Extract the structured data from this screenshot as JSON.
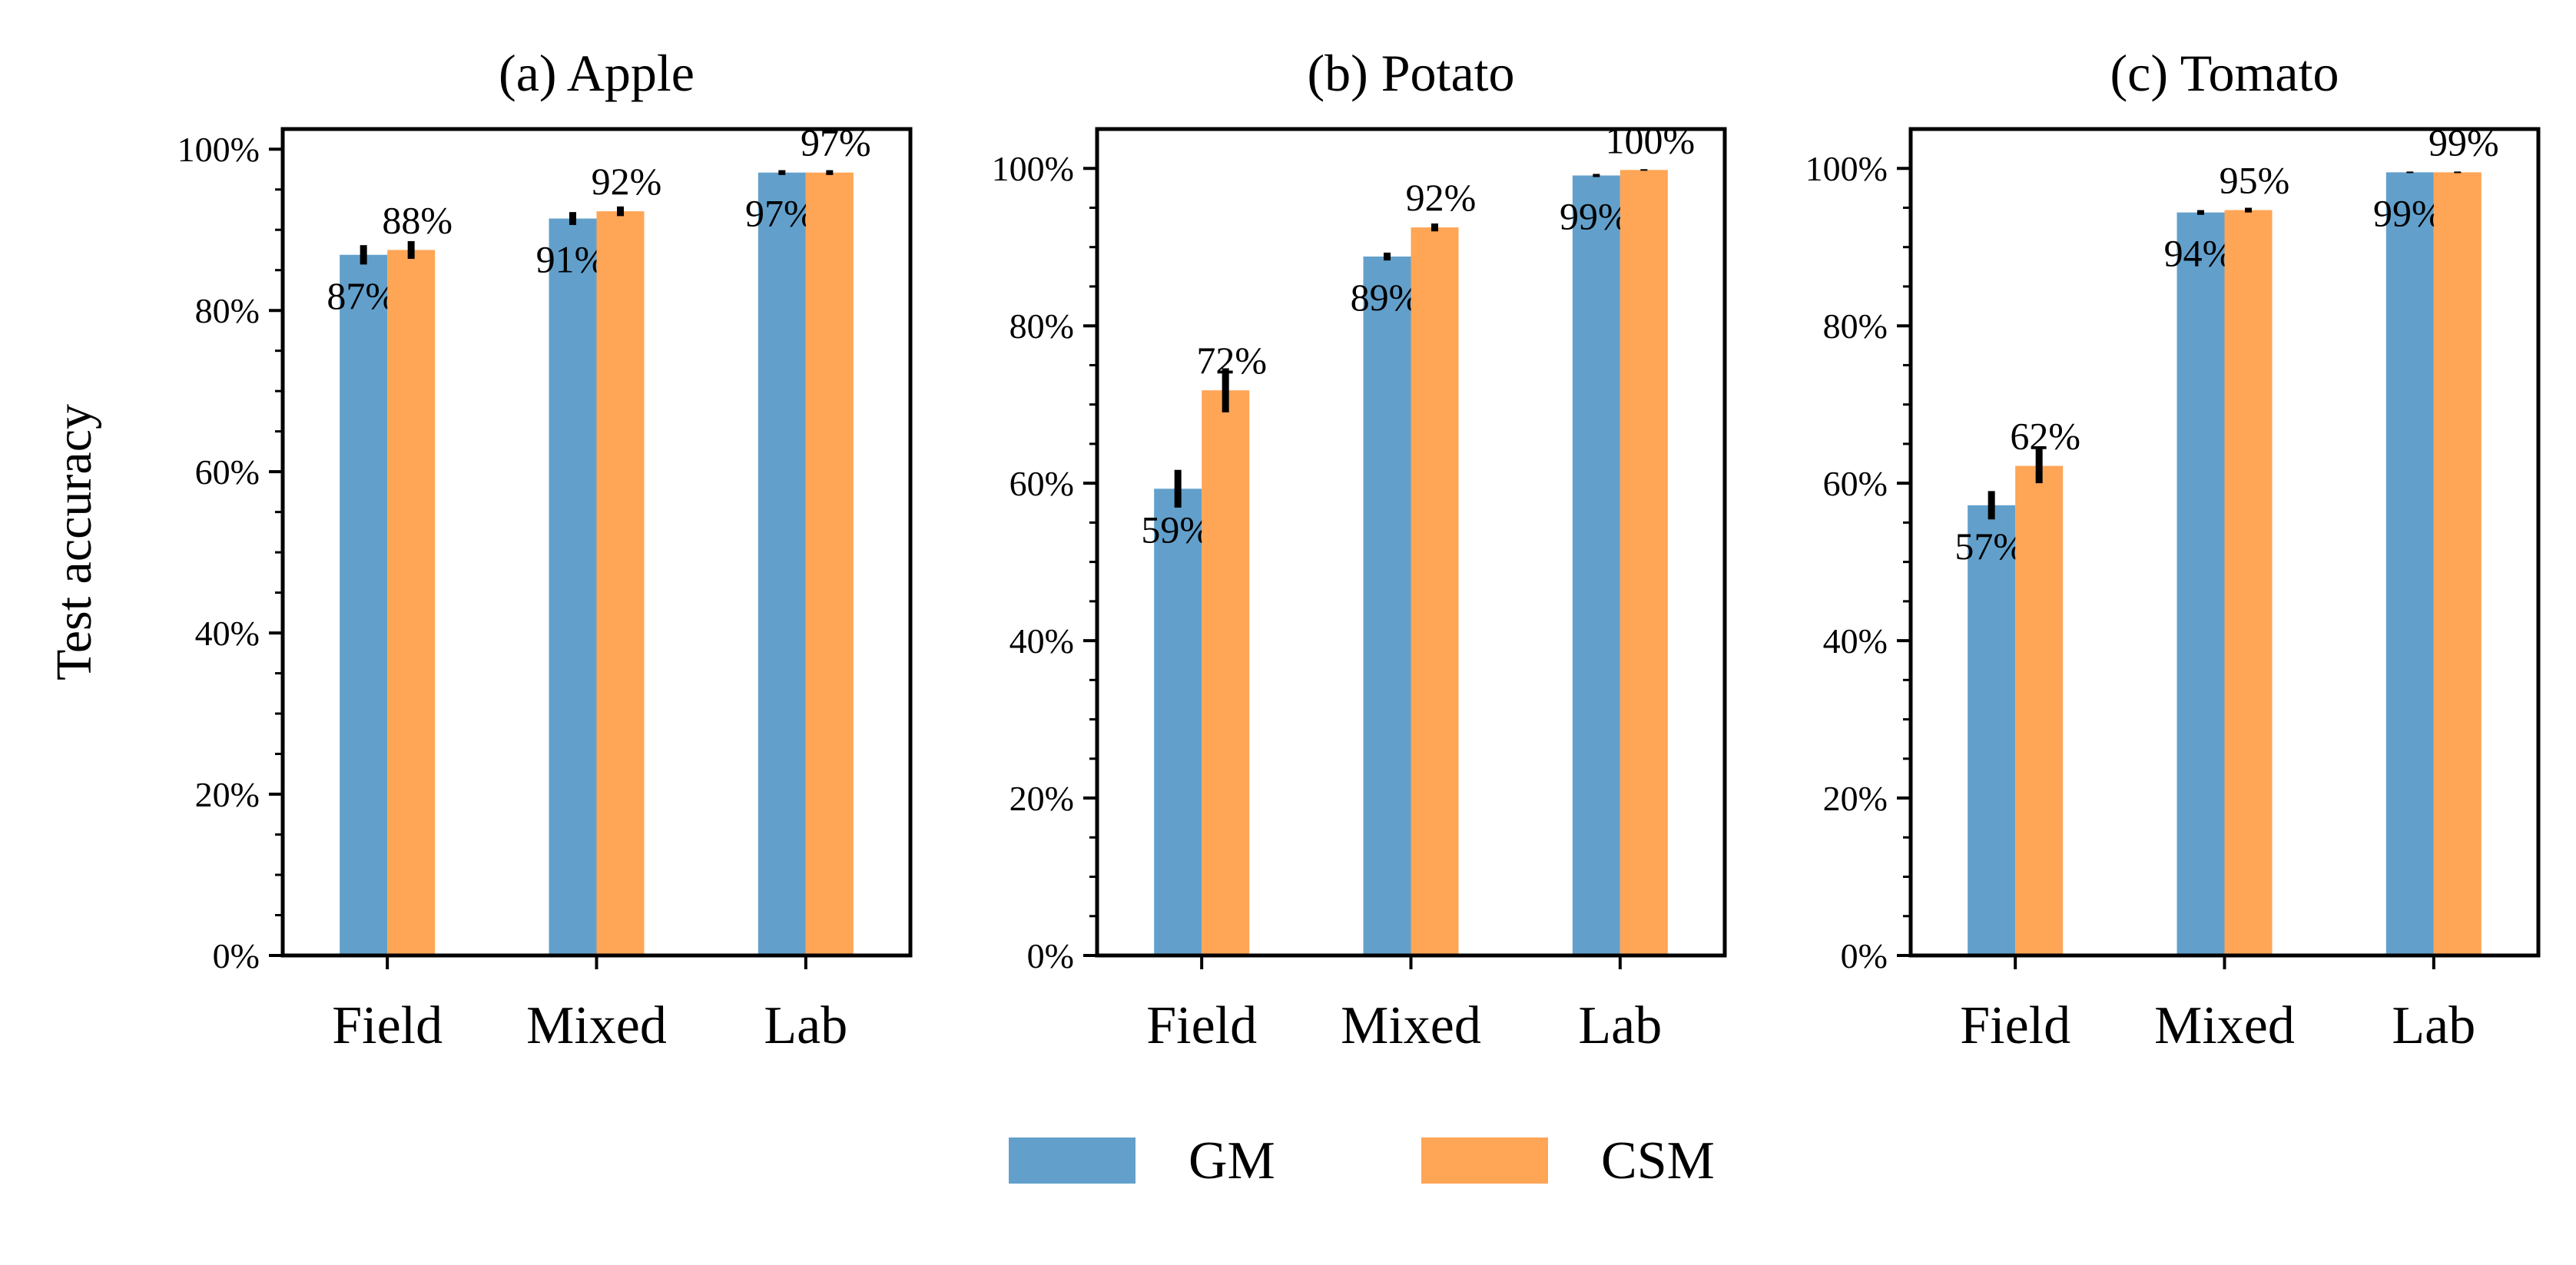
{
  "chart_data": [
    {
      "type": "bar",
      "title": "(a) Apple",
      "ylabel": "Test accuracy",
      "categories": [
        "Field",
        "Mixed",
        "Lab"
      ],
      "ylim": [
        0,
        102.5
      ],
      "y_ticks": [
        "0%",
        "20%",
        "40%",
        "60%",
        "80%",
        "100%"
      ],
      "series": [
        {
          "name": "GM",
          "values": [
            86.9,
            91.4,
            97.1
          ],
          "errors": [
            1.2,
            0.8,
            0.3
          ],
          "labels": [
            "87%",
            "91%",
            "97%"
          ]
        },
        {
          "name": "CSM",
          "values": [
            87.5,
            92.3,
            97.1
          ],
          "errors": [
            1.1,
            0.6,
            0.3
          ],
          "labels": [
            "88%",
            "92%",
            "97%"
          ]
        }
      ]
    },
    {
      "type": "bar",
      "title": "(b) Potato",
      "categories": [
        "Field",
        "Mixed",
        "Lab"
      ],
      "ylim": [
        0,
        105
      ],
      "y_ticks": [
        "0%",
        "20%",
        "40%",
        "60%",
        "80%",
        "100%"
      ],
      "series": [
        {
          "name": "GM",
          "values": [
            59.3,
            88.8,
            99.1
          ],
          "errors": [
            2.4,
            0.5,
            0.2
          ],
          "labels": [
            "59%",
            "89%",
            "99%"
          ]
        },
        {
          "name": "CSM",
          "values": [
            71.8,
            92.5,
            99.8
          ],
          "errors": [
            2.8,
            0.5,
            0.1
          ],
          "labels": [
            "72%",
            "92%",
            "100%"
          ]
        }
      ]
    },
    {
      "type": "bar",
      "title": "(c) Tomato",
      "categories": [
        "Field",
        "Mixed",
        "Lab"
      ],
      "ylim": [
        0,
        105
      ],
      "y_ticks": [
        "0%",
        "20%",
        "40%",
        "60%",
        "80%",
        "100%"
      ],
      "series": [
        {
          "name": "GM",
          "values": [
            57.2,
            94.4,
            99.5
          ],
          "errors": [
            1.8,
            0.3,
            0.1
          ],
          "labels": [
            "57%",
            "94%",
            "99%"
          ]
        },
        {
          "name": "CSM",
          "values": [
            62.2,
            94.7,
            99.5
          ],
          "errors": [
            2.2,
            0.3,
            0.1
          ],
          "labels": [
            "62%",
            "95%",
            "99%"
          ]
        }
      ]
    }
  ],
  "legend": {
    "position": "bottom-center",
    "items": [
      {
        "name": "GM",
        "color": "#62a0cb"
      },
      {
        "name": "CSM",
        "color": "#ffa556"
      }
    ]
  }
}
